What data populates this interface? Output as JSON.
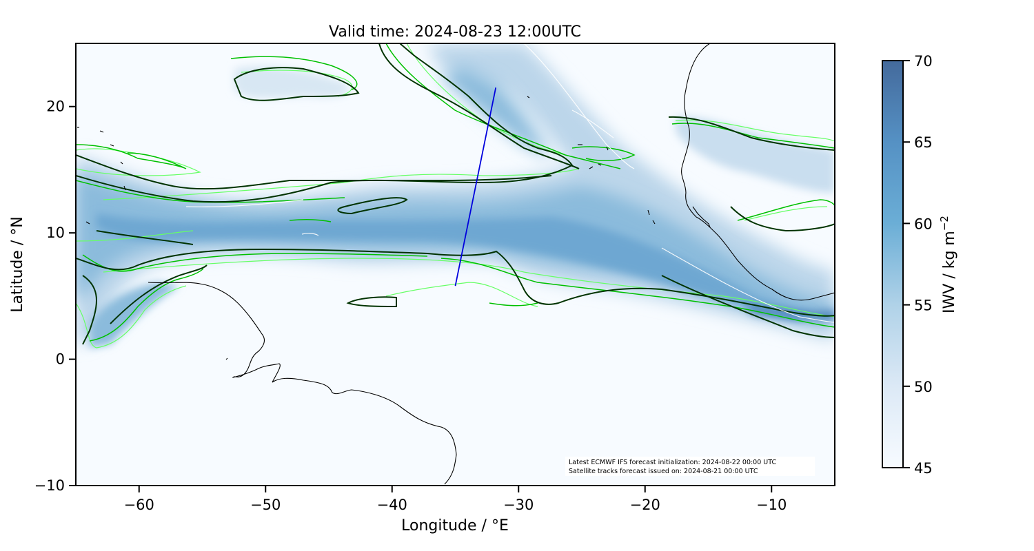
{
  "title": "Valid time: 2024-08-23 12:00UTC",
  "x_axis": {
    "label": "Longitude / °E",
    "range": [
      -65,
      -5
    ],
    "ticks": [
      -60,
      -50,
      -40,
      -30,
      -20,
      -10
    ],
    "tick_labels": [
      "−60",
      "−50",
      "−40",
      "−30",
      "−20",
      "−10"
    ]
  },
  "y_axis": {
    "label": "Latitude / °N",
    "range": [
      -10,
      25
    ],
    "ticks": [
      -10,
      0,
      10,
      20
    ],
    "tick_labels": [
      "−10",
      "0",
      "10",
      "20"
    ]
  },
  "colorbar": {
    "label": "IWV / kg m",
    "label_exponent": "−2",
    "range": [
      45,
      70
    ],
    "ticks": [
      45,
      50,
      55,
      60,
      65,
      70
    ],
    "tick_labels": [
      "45",
      "50",
      "55",
      "60",
      "65",
      "70"
    ],
    "color_low": "#f7fbff",
    "color_mid": "#6baed6",
    "color_high": "#446a9c"
  },
  "annotation": {
    "line1": "Latest ECMWF IFS forecast initialization: 2024-08-22 00:00 UTC",
    "line2": "Satellite tracks forecast issued on: 2024-08-21 00:00 UTC"
  },
  "colors": {
    "track": "#0000dd",
    "contour_dark": "#003300",
    "contour_mid": "#00c000",
    "contour_light": "#66ff66",
    "coast": "#000000"
  },
  "chart_data": {
    "type": "heatmap",
    "title": "Valid time: 2024-08-23 12:00UTC",
    "xlabel": "Longitude / °E",
    "ylabel": "Latitude / °N",
    "xlim": [
      -65,
      -5
    ],
    "ylim": [
      -10,
      25
    ],
    "value_label": "IWV / kg m-2",
    "value_range": [
      45,
      70
    ],
    "satellite_track": [
      {
        "lon": -35.0,
        "lat": 5.8
      },
      {
        "lon": -31.8,
        "lat": 21.5
      }
    ]
  }
}
